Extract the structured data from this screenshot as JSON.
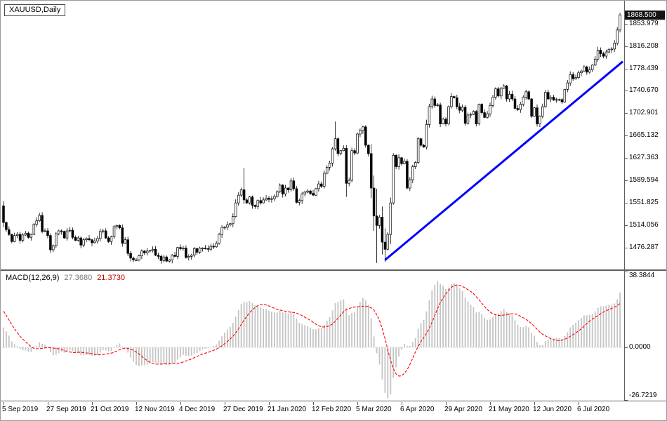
{
  "symbol_box": {
    "label": "XAUUSD,Daily"
  },
  "macd_box": {
    "name": "MACD(12,26,9)",
    "main": "27.3680",
    "signal": "21.3730"
  },
  "colors": {
    "bull": "#ffffff",
    "bear": "#000000",
    "wick": "#000000",
    "trendline": "#0000ff",
    "histogram": "#c4c4c4",
    "signal_line": "#ff0000",
    "zero_line": "#c8c8c8",
    "price_tag_bg": "#141414",
    "price_tag_text": "#ffffff"
  },
  "chart_data": {
    "type": "candlestick",
    "symbol": "XAUUSD",
    "timeframe": "Daily",
    "title": "XAUUSD Daily candlestick chart with blue trendline and MACD(12,26,9) sub-panel",
    "price_range": [
      1440,
      1890
    ],
    "last_price": 1868.5,
    "last_price_label": "1868.500",
    "y_ticks": {
      "labels": [
        "1853.979",
        "1816.208",
        "1778.439",
        "1740.670",
        "1702.901",
        "1665.132",
        "1627.363",
        "1589.594",
        "1551.825",
        "1514.056",
        "1476.287"
      ],
      "values": [
        1853.979,
        1816.208,
        1778.439,
        1740.67,
        1702.901,
        1665.132,
        1627.363,
        1589.594,
        1551.825,
        1514.056,
        1476.287
      ]
    },
    "x_ticks": {
      "labels": [
        "5 Sep 2019",
        "27 Sep 2019",
        "21 Oct 2019",
        "12 Nov 2019",
        "4 Dec 2019",
        "27 Dec 2019",
        "21 Jan 2020",
        "12 Feb 2020",
        "5 Mar 2020",
        "6 Apr 2020",
        "29 Apr 2020",
        "21 May 2020",
        "12 Jun 2020",
        "6 Jul 2020"
      ],
      "indices": [
        0,
        16,
        32,
        48,
        64,
        80,
        96,
        112,
        128,
        144,
        160,
        176,
        192,
        208
      ]
    },
    "first_open": 1547,
    "closes": [
      1519,
      1507,
      1499,
      1487,
      1497,
      1499,
      1489,
      1498,
      1501,
      1494,
      1499,
      1516,
      1522,
      1531,
      1504,
      1505,
      1497,
      1473,
      1480,
      1500,
      1505,
      1504,
      1493,
      1505,
      1506,
      1494,
      1489,
      1493,
      1481,
      1490,
      1492,
      1490,
      1485,
      1488,
      1492,
      1504,
      1505,
      1493,
      1487,
      1495,
      1512,
      1514,
      1510,
      1484,
      1490,
      1467,
      1459,
      1456,
      1456,
      1463,
      1471,
      1468,
      1471,
      1472,
      1474,
      1464,
      1462,
      1455,
      1461,
      1454,
      1456,
      1464,
      1462,
      1477,
      1475,
      1476,
      1460,
      1462,
      1464,
      1475,
      1469,
      1476,
      1476,
      1475,
      1474,
      1479,
      1478,
      1484,
      1499,
      1511,
      1511,
      1515,
      1517,
      1529,
      1552,
      1565,
      1574,
      1557,
      1552,
      1562,
      1548,
      1546,
      1556,
      1552,
      1557,
      1560,
      1558,
      1559,
      1563,
      1571,
      1582,
      1567,
      1577,
      1574,
      1589,
      1576,
      1553,
      1556,
      1567,
      1570,
      1572,
      1568,
      1565,
      1576,
      1584,
      1580,
      1602,
      1612,
      1619,
      1643,
      1660,
      1635,
      1640,
      1644,
      1585,
      1590,
      1640,
      1636,
      1668,
      1674,
      1680,
      1649,
      1635,
      1577,
      1530,
      1514,
      1528,
      1486,
      1474,
      1499,
      1552,
      1632,
      1613,
      1628,
      1618,
      1622,
      1577,
      1591,
      1613,
      1620,
      1660,
      1649,
      1646,
      1684,
      1714,
      1727,
      1716,
      1717,
      1685,
      1693,
      1685,
      1714,
      1731,
      1729,
      1714,
      1708,
      1713,
      1686,
      1700,
      1701,
      1706,
      1685,
      1718,
      1704,
      1696,
      1702,
      1716,
      1730,
      1744,
      1732,
      1745,
      1749,
      1727,
      1735,
      1727,
      1711,
      1709,
      1718,
      1730,
      1739,
      1727,
      1698,
      1712,
      1685,
      1698,
      1714,
      1738,
      1727,
      1730,
      1725,
      1726,
      1726,
      1722,
      1743,
      1754,
      1768,
      1761,
      1763,
      1771,
      1774,
      1781,
      1772,
      1776,
      1784,
      1794,
      1809,
      1803,
      1799,
      1806,
      1810,
      1811,
      1821,
      1843,
      1868.5
    ],
    "ohlc_overrides": {
      "0": [
        1547,
        1555,
        1511,
        1519
      ],
      "87": [
        1574,
        1611,
        1550,
        1557
      ],
      "120": [
        1643,
        1689,
        1640,
        1660
      ],
      "124": [
        1644,
        1649,
        1562,
        1585
      ],
      "133": [
        1635,
        1651,
        1560,
        1577
      ],
      "134": [
        1577,
        1598,
        1505,
        1530
      ],
      "135": [
        1530,
        1576,
        1451,
        1514
      ],
      "137": [
        1528,
        1546,
        1465,
        1486
      ],
      "138": [
        1486,
        1509,
        1453,
        1474
      ],
      "140": [
        1499,
        1561,
        1483,
        1552
      ],
      "141": [
        1552,
        1636,
        1549,
        1632
      ],
      "153": [
        1646,
        1692,
        1642,
        1684
      ],
      "221": [
        1811,
        1826,
        1806,
        1821
      ],
      "222": [
        1821,
        1848,
        1817,
        1843
      ],
      "223": [
        1843,
        1872,
        1839,
        1868.5
      ]
    },
    "trendline": {
      "from_index": 138,
      "from_price": 1456,
      "to_index": 224,
      "to_price": 1790,
      "width": 3
    },
    "macd": {
      "fast": 12,
      "slow": 26,
      "signal": 9,
      "panel_max": 38.3844,
      "panel_min": -26.7219,
      "axis_labels": {
        "top": "38.3844",
        "zero": "0.0000",
        "bottom": "-26.7219"
      }
    }
  }
}
